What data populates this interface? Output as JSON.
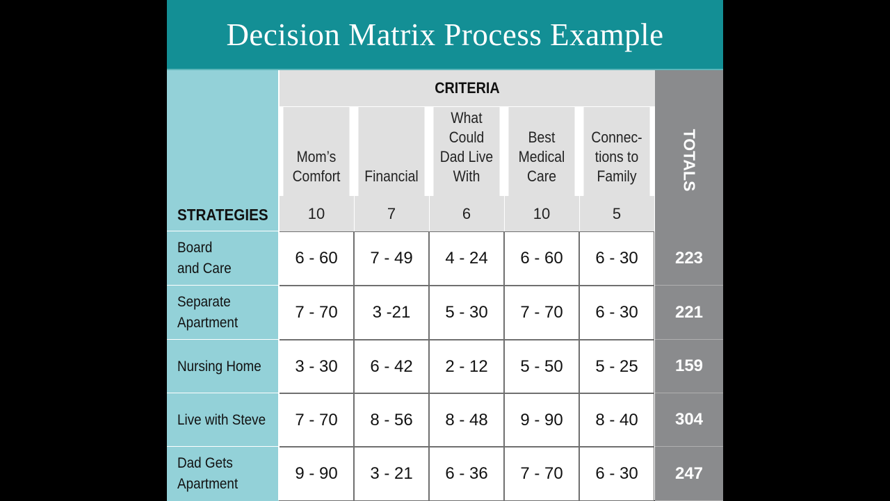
{
  "title": "Decision Matrix Process Example",
  "headers": {
    "criteria": "CRITERIA",
    "strategies": "STRATEGIES",
    "totals": "TOTALS"
  },
  "criteria": [
    {
      "name_lines": [
        "Mom’s",
        "Comfort"
      ],
      "weight": "10"
    },
    {
      "name_lines": [
        "Financial"
      ],
      "weight": "7"
    },
    {
      "name_lines": [
        "What",
        "Could",
        "Dad Live",
        "With"
      ],
      "weight": "6"
    },
    {
      "name_lines": [
        "Best",
        "Medical",
        "Care"
      ],
      "weight": "10"
    },
    {
      "name_lines": [
        "Connec-",
        "tions to",
        "Family"
      ],
      "weight": "5"
    }
  ],
  "rows": [
    {
      "strategy_lines": [
        "Board",
        "and Care"
      ],
      "scores": [
        "6 - 60",
        "7 - 49",
        "4 - 24",
        "6 - 60",
        "6 - 30"
      ],
      "total": "223"
    },
    {
      "strategy_lines": [
        "Separate",
        "Apartment"
      ],
      "scores": [
        "7 - 70",
        "3 -21",
        "5 - 30",
        "7 - 70",
        "6 - 30"
      ],
      "total": "221"
    },
    {
      "strategy_lines": [
        "Nursing Home"
      ],
      "scores": [
        "3 - 30",
        "6 - 42",
        "2 - 12",
        "5 - 50",
        "5 - 25"
      ],
      "total": "159"
    },
    {
      "strategy_lines": [
        "Live with Steve"
      ],
      "scores": [
        "7 - 70",
        "8 - 56",
        "8 - 48",
        "9 - 90",
        "8 - 40"
      ],
      "total": "304"
    },
    {
      "strategy_lines": [
        "Dad Gets",
        "Apartment"
      ],
      "scores": [
        "9 - 90",
        "3 - 21",
        "6 - 36",
        "7 - 70",
        "6 - 30"
      ],
      "total": "247"
    }
  ]
}
